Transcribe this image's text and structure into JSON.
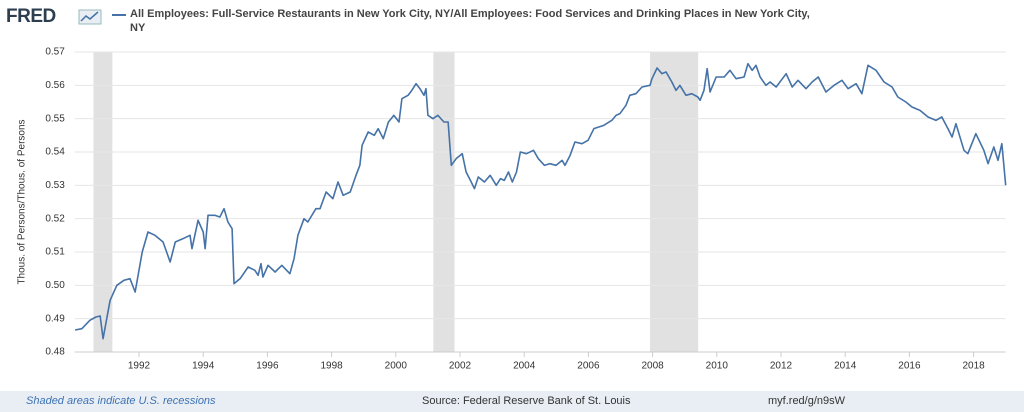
{
  "logo": "FRED",
  "chart_data": {
    "type": "line",
    "ylabel": "Thous. of Persons/Thous. of Persons",
    "x": [
      1990.01,
      1990.22,
      1990.47,
      1990.66,
      1990.79,
      1990.88,
      1991.1,
      1991.31,
      1991.53,
      1991.72,
      1991.88,
      1992.1,
      1992.28,
      1992.5,
      1992.75,
      1992.97,
      1993.13,
      1993.37,
      1993.59,
      1993.65,
      1993.84,
      1994.0,
      1994.06,
      1994.15,
      1994.37,
      1994.52,
      1994.65,
      1994.77,
      1994.9,
      1994.96,
      1995.15,
      1995.4,
      1995.61,
      1995.71,
      1995.8,
      1995.86,
      1996.02,
      1996.24,
      1996.45,
      1996.7,
      1996.83,
      1996.95,
      1997.14,
      1997.26,
      1997.51,
      1997.64,
      1997.83,
      1998.04,
      1998.2,
      1998.36,
      1998.58,
      1998.76,
      1998.88,
      1998.95,
      1999.14,
      1999.33,
      1999.45,
      1999.61,
      1999.77,
      1999.94,
      2000.1,
      2000.19,
      2000.38,
      2000.5,
      2000.63,
      2000.75,
      2000.88,
      2000.94,
      2001.0,
      2001.16,
      2001.31,
      2001.5,
      2001.63,
      2001.73,
      2001.88,
      2002.07,
      2002.19,
      2002.35,
      2002.45,
      2002.57,
      2002.76,
      2002.94,
      2003.13,
      2003.26,
      2003.38,
      2003.51,
      2003.63,
      2003.76,
      2003.88,
      2004.07,
      2004.29,
      2004.44,
      2004.63,
      2004.8,
      2004.99,
      2005.18,
      2005.27,
      2005.43,
      2005.58,
      2005.8,
      2005.99,
      2006.17,
      2006.48,
      2006.73,
      2006.86,
      2006.98,
      2007.17,
      2007.29,
      2007.48,
      2007.67,
      2007.92,
      2007.98,
      2008.14,
      2008.29,
      2008.42,
      2008.6,
      2008.73,
      2008.85,
      2009.04,
      2009.22,
      2009.41,
      2009.48,
      2009.6,
      2009.7,
      2009.79,
      2009.98,
      2010.23,
      2010.41,
      2010.6,
      2010.85,
      2010.97,
      2011.1,
      2011.22,
      2011.35,
      2011.53,
      2011.66,
      2011.85,
      2012.16,
      2012.35,
      2012.53,
      2012.78,
      2012.97,
      2013.16,
      2013.4,
      2013.65,
      2013.9,
      2014.09,
      2014.34,
      2014.52,
      2014.71,
      2014.96,
      2015.21,
      2015.46,
      2015.64,
      2015.89,
      2016.08,
      2016.33,
      2016.58,
      2016.83,
      2017.01,
      2017.2,
      2017.33,
      2017.45,
      2017.7,
      2017.82,
      2018.07,
      2018.32,
      2018.45,
      2018.63,
      2018.76,
      2018.88,
      2019.0
    ],
    "series": [
      {
        "name": "All Employees: Full-Service Restaurants in New York City, NY/All Employees: Food Services and Drinking Places in New York City, NY",
        "color": "#4572a7",
        "values": [
          0.4866,
          0.487,
          0.4895,
          0.4905,
          0.4908,
          0.484,
          0.4955,
          0.5,
          0.5015,
          0.502,
          0.498,
          0.51,
          0.516,
          0.515,
          0.513,
          0.507,
          0.513,
          0.514,
          0.515,
          0.511,
          0.5195,
          0.516,
          0.511,
          0.521,
          0.521,
          0.5205,
          0.523,
          0.519,
          0.517,
          0.5005,
          0.502,
          0.5055,
          0.5045,
          0.503,
          0.5065,
          0.5025,
          0.506,
          0.504,
          0.506,
          0.5035,
          0.508,
          0.515,
          0.52,
          0.519,
          0.523,
          0.523,
          0.528,
          0.526,
          0.531,
          0.527,
          0.528,
          0.533,
          0.536,
          0.542,
          0.546,
          0.545,
          0.547,
          0.544,
          0.549,
          0.551,
          0.549,
          0.556,
          0.557,
          0.5585,
          0.5605,
          0.559,
          0.557,
          0.559,
          0.551,
          0.55,
          0.551,
          0.549,
          0.549,
          0.536,
          0.538,
          0.5395,
          0.534,
          0.531,
          0.529,
          0.5325,
          0.531,
          0.533,
          0.53,
          0.532,
          0.5315,
          0.534,
          0.531,
          0.534,
          0.54,
          0.5395,
          0.5405,
          0.538,
          0.536,
          0.5365,
          0.536,
          0.5375,
          0.536,
          0.539,
          0.543,
          0.5425,
          0.5435,
          0.547,
          0.548,
          0.5495,
          0.551,
          0.5515,
          0.554,
          0.557,
          0.5575,
          0.5595,
          0.56,
          0.562,
          0.5652,
          0.5635,
          0.564,
          0.561,
          0.5585,
          0.56,
          0.557,
          0.5575,
          0.5565,
          0.5555,
          0.5585,
          0.565,
          0.558,
          0.5625,
          0.5625,
          0.5645,
          0.562,
          0.5625,
          0.5665,
          0.5645,
          0.566,
          0.5625,
          0.56,
          0.561,
          0.5595,
          0.5635,
          0.5595,
          0.5615,
          0.559,
          0.561,
          0.5625,
          0.558,
          0.56,
          0.5615,
          0.559,
          0.5605,
          0.5575,
          0.566,
          0.5645,
          0.561,
          0.5595,
          0.5565,
          0.555,
          0.5535,
          0.5525,
          0.5505,
          0.5495,
          0.5505,
          0.547,
          0.5445,
          0.5485,
          0.5405,
          0.5395,
          0.5455,
          0.5405,
          0.5365,
          0.5415,
          0.5375,
          0.5425,
          0.53
        ]
      }
    ],
    "recessions": [
      [
        1990.58,
        1991.17
      ],
      [
        2001.17,
        2001.83
      ],
      [
        2007.92,
        2009.42
      ]
    ],
    "recession_color": "#e1e1e1",
    "xlim": [
      1990,
      2019
    ],
    "xticks": [
      1992,
      1994,
      1996,
      1998,
      2000,
      2002,
      2004,
      2006,
      2008,
      2010,
      2012,
      2014,
      2016,
      2018
    ],
    "ylim": [
      0.48,
      0.57
    ],
    "yticks": [
      0.48,
      0.49,
      {
        "value": 0.5,
        "label": "0.50"
      },
      0.51,
      0.52,
      0.53,
      0.54,
      0.55,
      0.56,
      0.57
    ],
    "grid": true,
    "note": "Shaded areas indicate U.S. recessions",
    "source": "Source: Federal Reserve Bank of St. Louis",
    "link": "myf.red/g/n9sW"
  }
}
